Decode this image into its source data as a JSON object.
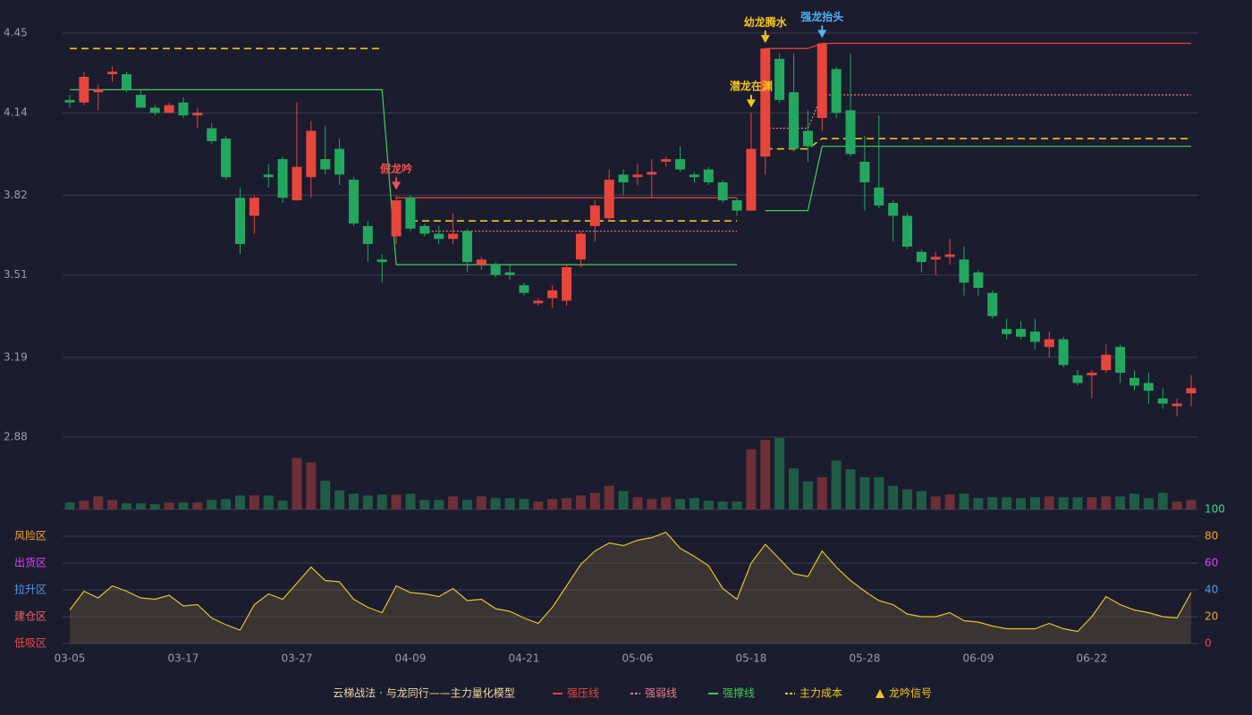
{
  "chart_data": {
    "type": "candlestick",
    "categories": [
      "03-05",
      null,
      null,
      null,
      null,
      null,
      null,
      null,
      "03-17",
      null,
      null,
      null,
      null,
      null,
      null,
      null,
      "03-27",
      null,
      null,
      null,
      null,
      null,
      null,
      null,
      "04-09",
      null,
      null,
      null,
      null,
      null,
      null,
      null,
      "04-21",
      null,
      null,
      null,
      null,
      null,
      null,
      null,
      "05-06",
      null,
      null,
      null,
      null,
      null,
      null,
      null,
      "05-18",
      null,
      null,
      null,
      null,
      null,
      null,
      null,
      "05-28",
      null,
      null,
      null,
      null,
      null,
      null,
      null,
      "06-09",
      null,
      null,
      null,
      null,
      null,
      null,
      null,
      "06-22",
      null,
      null,
      null,
      null,
      null,
      null,
      null
    ],
    "open": [
      4.19,
      4.18,
      4.22,
      4.29,
      4.29,
      4.21,
      4.16,
      4.14,
      4.18,
      4.13,
      4.08,
      4.04,
      3.81,
      3.74,
      3.9,
      3.96,
      3.8,
      3.89,
      3.96,
      4.0,
      3.88,
      3.7,
      3.57,
      3.66,
      3.81,
      3.7,
      3.67,
      3.65,
      3.68,
      3.55,
      3.55,
      3.52,
      3.47,
      3.4,
      3.42,
      3.41,
      3.57,
      3.7,
      3.73,
      3.9,
      3.89,
      3.9,
      3.95,
      3.96,
      3.9,
      3.92,
      3.87,
      3.8,
      3.76,
      3.97,
      4.35,
      4.22,
      4.07,
      4.12,
      4.31,
      4.15,
      3.95,
      3.85,
      3.79,
      3.74,
      3.6,
      3.57,
      3.58,
      3.57,
      3.52,
      3.44,
      3.3,
      3.3,
      3.29,
      3.23,
      3.26,
      3.12,
      3.12,
      3.14,
      3.23,
      3.11,
      3.09,
      3.03,
      3.0,
      3.05
    ],
    "close": [
      4.18,
      4.28,
      4.23,
      4.3,
      4.23,
      4.16,
      4.14,
      4.17,
      4.13,
      4.14,
      4.03,
      3.89,
      3.63,
      3.81,
      3.89,
      3.81,
      3.93,
      4.07,
      3.92,
      3.9,
      3.71,
      3.63,
      3.56,
      3.8,
      3.69,
      3.67,
      3.65,
      3.67,
      3.56,
      3.57,
      3.51,
      3.51,
      3.44,
      3.41,
      3.45,
      3.54,
      3.67,
      3.78,
      3.88,
      3.87,
      3.9,
      3.91,
      3.96,
      3.92,
      3.89,
      3.87,
      3.8,
      3.76,
      4.0,
      4.39,
      4.19,
      4.0,
      4.01,
      4.41,
      4.14,
      3.98,
      3.87,
      3.78,
      3.74,
      3.62,
      3.56,
      3.58,
      3.59,
      3.48,
      3.46,
      3.35,
      3.28,
      3.27,
      3.25,
      3.26,
      3.16,
      3.09,
      3.13,
      3.2,
      3.13,
      3.08,
      3.06,
      3.01,
      3.01,
      3.07
    ],
    "high": [
      4.21,
      4.3,
      4.25,
      4.32,
      4.3,
      4.23,
      4.17,
      4.18,
      4.2,
      4.16,
      4.1,
      4.05,
      3.85,
      3.82,
      3.94,
      3.97,
      4.18,
      4.11,
      4.09,
      4.04,
      3.89,
      3.72,
      3.59,
      3.82,
      3.82,
      3.71,
      3.7,
      3.75,
      3.69,
      3.58,
      3.56,
      3.55,
      3.48,
      3.42,
      3.47,
      3.55,
      3.68,
      3.8,
      3.92,
      3.92,
      3.94,
      3.96,
      3.97,
      4.01,
      3.91,
      3.93,
      3.88,
      3.81,
      4.14,
      4.39,
      4.37,
      4.37,
      4.15,
      4.41,
      4.32,
      4.37,
      4.05,
      4.13,
      3.8,
      3.75,
      3.61,
      3.6,
      3.65,
      3.62,
      3.53,
      3.45,
      3.34,
      3.33,
      3.34,
      3.29,
      3.27,
      3.14,
      3.14,
      3.24,
      3.24,
      3.14,
      3.13,
      3.07,
      3.03,
      3.12
    ],
    "low": [
      4.16,
      4.17,
      4.15,
      4.26,
      4.22,
      4.16,
      4.13,
      4.14,
      4.12,
      4.08,
      4.02,
      3.88,
      3.59,
      3.67,
      3.85,
      3.79,
      3.8,
      3.81,
      3.9,
      3.86,
      3.7,
      3.56,
      3.48,
      3.63,
      3.68,
      3.66,
      3.63,
      3.63,
      3.52,
      3.53,
      3.5,
      3.49,
      3.43,
      3.39,
      3.38,
      3.39,
      3.54,
      3.64,
      3.72,
      3.82,
      3.86,
      3.81,
      3.93,
      3.91,
      3.87,
      3.86,
      3.79,
      3.74,
      3.76,
      3.9,
      4.18,
      3.99,
      3.95,
      4.07,
      4.12,
      3.97,
      3.76,
      3.77,
      3.64,
      3.61,
      3.52,
      3.51,
      3.55,
      3.43,
      3.43,
      3.34,
      3.26,
      3.26,
      3.22,
      3.19,
      3.15,
      3.08,
      3.03,
      3.13,
      3.09,
      3.06,
      3.01,
      2.99,
      2.96,
      3.0
    ],
    "volume": [
      8,
      10,
      15,
      11,
      7,
      7,
      6,
      8,
      8,
      8,
      11,
      12,
      16,
      16,
      16,
      10,
      59,
      54,
      33,
      22,
      18,
      16,
      17,
      17,
      18,
      11,
      11,
      15,
      11,
      15,
      13,
      13,
      12,
      9,
      12,
      13,
      16,
      19,
      27,
      21,
      14,
      12,
      14,
      12,
      13,
      10,
      9,
      9,
      69,
      80,
      82,
      47,
      32,
      37,
      56,
      46,
      37,
      37,
      27,
      23,
      21,
      15,
      17,
      18,
      13,
      14,
      14,
      13,
      14,
      15,
      14,
      14,
      14,
      15,
      15,
      18,
      13,
      19,
      9,
      11
    ],
    "up_color": "#e8453c",
    "down_color": "#22a85e",
    "ylim": [
      2.88,
      4.45
    ],
    "yticks": [
      2.88,
      3.19,
      3.51,
      3.82,
      4.14,
      4.45
    ],
    "grid": true,
    "levels": [
      {
        "name": "强压线",
        "color": "#e8453c",
        "style": "solid",
        "values": [
          null,
          null,
          null,
          null,
          null,
          null,
          null,
          null,
          null,
          null,
          null,
          null,
          null,
          null,
          null,
          null,
          null,
          null,
          null,
          null,
          null,
          null,
          null,
          3.81,
          3.81,
          3.81,
          3.81,
          3.81,
          3.81,
          3.81,
          3.81,
          3.81,
          3.81,
          3.81,
          3.81,
          3.81,
          3.81,
          3.81,
          3.81,
          3.81,
          3.81,
          3.81,
          3.81,
          3.81,
          3.81,
          3.81,
          3.81,
          3.81,
          null,
          4.39,
          4.39,
          4.39,
          4.39,
          4.41,
          4.41,
          4.41,
          4.41,
          4.41,
          4.41,
          4.41,
          4.41,
          4.41,
          4.41,
          4.41,
          4.41,
          4.41,
          4.41,
          4.41,
          4.41,
          4.41,
          4.41,
          4.41,
          4.41,
          4.41,
          4.41,
          4.41,
          4.41,
          4.41,
          4.41,
          4.41
        ]
      },
      {
        "name": "强弱线",
        "color": "#f07890",
        "style": "dotted",
        "values": [
          null,
          null,
          null,
          null,
          null,
          null,
          null,
          null,
          null,
          null,
          null,
          null,
          null,
          null,
          null,
          null,
          null,
          null,
          null,
          null,
          null,
          null,
          null,
          null,
          null,
          3.68,
          3.68,
          3.68,
          3.68,
          3.68,
          3.68,
          3.68,
          3.68,
          3.68,
          3.68,
          3.68,
          3.68,
          3.68,
          3.68,
          3.68,
          3.68,
          3.68,
          3.68,
          3.68,
          3.68,
          3.68,
          3.68,
          3.68,
          null,
          4.08,
          4.08,
          4.08,
          4.08,
          4.21,
          4.21,
          4.21,
          4.21,
          4.21,
          4.21,
          4.21,
          4.21,
          4.21,
          4.21,
          4.21,
          4.21,
          4.21,
          4.21,
          4.21,
          4.21,
          4.21,
          4.21,
          4.21,
          4.21,
          4.21,
          4.21,
          4.21,
          4.21,
          4.21,
          4.21,
          4.21
        ]
      },
      {
        "name": "强撑线",
        "color": "#3ecf5a",
        "style": "solid",
        "values": [
          4.23,
          4.23,
          4.23,
          4.23,
          4.23,
          4.23,
          4.23,
          4.23,
          4.23,
          4.23,
          4.23,
          4.23,
          4.23,
          4.23,
          4.23,
          4.23,
          4.23,
          4.23,
          4.23,
          4.23,
          4.23,
          4.23,
          4.23,
          3.55,
          3.55,
          3.55,
          3.55,
          3.55,
          3.55,
          3.55,
          3.55,
          3.55,
          3.55,
          3.55,
          3.55,
          3.55,
          3.55,
          3.55,
          3.55,
          3.55,
          3.55,
          3.55,
          3.55,
          3.55,
          3.55,
          3.55,
          3.55,
          3.55,
          null,
          3.76,
          3.76,
          3.76,
          3.76,
          4.01,
          4.01,
          4.01,
          4.01,
          4.01,
          4.01,
          4.01,
          4.01,
          4.01,
          4.01,
          4.01,
          4.01,
          4.01,
          4.01,
          4.01,
          4.01,
          4.01,
          4.01,
          4.01,
          4.01,
          4.01,
          4.01,
          4.01,
          4.01,
          4.01,
          4.01,
          4.01
        ]
      },
      {
        "name": "主力成本",
        "color": "#f5c518",
        "style": "dashed",
        "values": [
          4.39,
          4.39,
          4.39,
          4.39,
          4.39,
          4.39,
          4.39,
          4.39,
          4.39,
          4.39,
          4.39,
          4.39,
          4.39,
          4.39,
          4.39,
          4.39,
          4.39,
          4.39,
          4.39,
          4.39,
          4.39,
          4.39,
          4.39,
          null,
          3.72,
          3.72,
          3.72,
          3.72,
          3.72,
          3.72,
          3.72,
          3.72,
          3.72,
          3.72,
          3.72,
          3.72,
          3.72,
          3.72,
          3.72,
          3.72,
          3.72,
          3.72,
          3.72,
          3.72,
          3.72,
          3.72,
          3.72,
          3.72,
          null,
          4.0,
          4.0,
          4.0,
          4.0,
          4.04,
          4.04,
          4.04,
          4.04,
          4.04,
          4.04,
          4.04,
          4.04,
          4.04,
          4.04,
          4.04,
          4.04,
          4.04,
          4.04,
          4.04,
          4.04,
          4.04,
          4.04,
          4.04,
          4.04,
          4.04,
          4.04,
          4.04,
          4.04,
          4.04,
          4.04,
          4.04
        ]
      }
    ],
    "signals": {
      "name": "龙吟信号",
      "color": "#f5c518",
      "items": [
        {
          "label": "假龙吟",
          "candle": 23,
          "color": "#f05050"
        },
        {
          "label": "潜龙在渊",
          "candle": 48,
          "color": "#f5c518"
        },
        {
          "label": "幼龙腾水",
          "candle": 49,
          "color": "#f5c518"
        },
        {
          "label": "强龙抬头",
          "candle": 53,
          "color": "#4fb3f6"
        }
      ]
    },
    "legend_title": "云梯战法 · 与龙同行——主力量化模型",
    "indicator": {
      "values": [
        25,
        39,
        34,
        43,
        39,
        34,
        33,
        36,
        28,
        29,
        19,
        14,
        10,
        29,
        37,
        33,
        45,
        57,
        47,
        46,
        33,
        27,
        23,
        43,
        38,
        37,
        35,
        41,
        32,
        33,
        26,
        24,
        19,
        15,
        27,
        43,
        59,
        69,
        75,
        73,
        77,
        79,
        83,
        71,
        65,
        58,
        41,
        33,
        60,
        74,
        63,
        52,
        50,
        69,
        57,
        47,
        39,
        32,
        29,
        22,
        20,
        20,
        23,
        17,
        16,
        13,
        11,
        11,
        11,
        15,
        11,
        9,
        20,
        35,
        29,
        25,
        23,
        20,
        19,
        38
      ],
      "color": "#e6c229",
      "ylim": [
        0,
        100
      ],
      "yticks": [
        0,
        20,
        40,
        60,
        80,
        100
      ],
      "ytick_colors": [
        "#f04848",
        "#f5a623",
        "#4d9bf0",
        "#e040fb",
        "#f5a623",
        "#3ddc84"
      ],
      "zones": [
        {
          "label": "风险区",
          "value": 80,
          "color": "#f5a623"
        },
        {
          "label": "出货区",
          "value": 60,
          "color": "#e040fb"
        },
        {
          "label": "拉升区",
          "value": 40,
          "color": "#4d9bf0"
        },
        {
          "label": "建仓区",
          "value": 20,
          "color": "#f06060"
        },
        {
          "label": "低吸区",
          "value": 0,
          "color": "#f04848"
        }
      ]
    }
  }
}
